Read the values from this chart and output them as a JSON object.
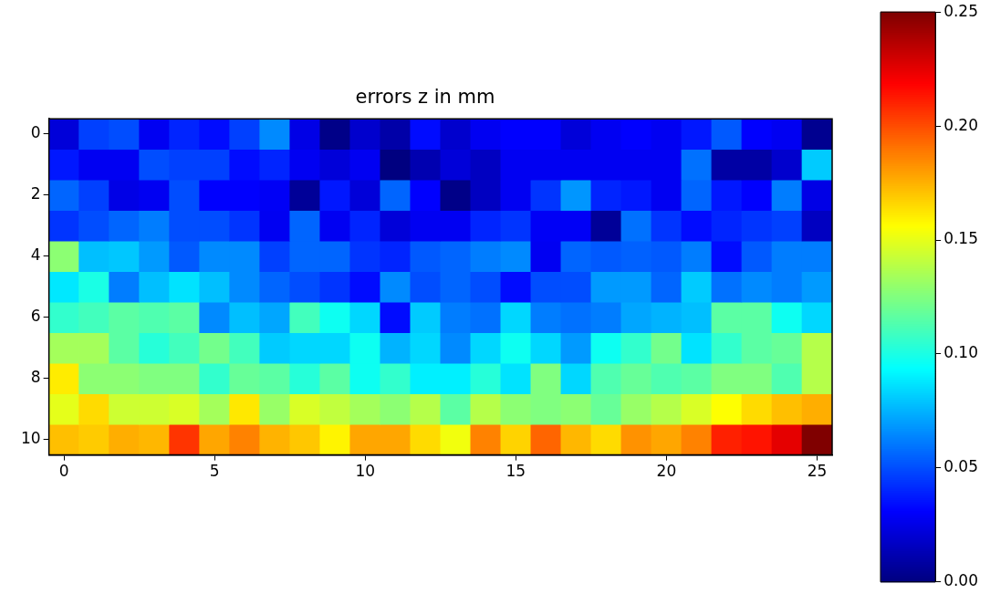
{
  "chart_data": {
    "type": "heatmap",
    "title": "errors z in mm",
    "categories": [
      "0",
      null,
      null,
      null,
      null,
      "5",
      null,
      null,
      null,
      null,
      "10",
      null,
      null,
      null,
      null,
      "15",
      null,
      null,
      null,
      null,
      "20",
      null,
      null,
      null,
      null,
      "25"
    ],
    "y_categories": [
      "0",
      null,
      "2",
      null,
      "4",
      null,
      "6",
      null,
      "8",
      null,
      "10"
    ],
    "cells": [
      [
        0.022,
        0.047,
        0.05,
        0.028,
        0.04,
        0.034,
        0.047,
        0.065,
        0.025,
        0.002,
        0.019,
        0.01,
        0.034,
        0.019,
        0.028,
        0.031,
        0.031,
        0.022,
        0.028,
        0.031,
        0.028,
        0.037,
        0.053,
        0.031,
        0.028,
        0.004
      ],
      [
        0.037,
        0.028,
        0.028,
        0.05,
        0.047,
        0.047,
        0.034,
        0.04,
        0.028,
        0.022,
        0.028,
        0.0,
        0.012,
        0.022,
        0.016,
        0.028,
        0.028,
        0.028,
        0.028,
        0.028,
        0.028,
        0.059,
        0.009,
        0.009,
        0.019,
        0.081
      ],
      [
        0.056,
        0.047,
        0.025,
        0.028,
        0.05,
        0.031,
        0.031,
        0.029,
        0.006,
        0.037,
        0.022,
        0.056,
        0.031,
        0.002,
        0.016,
        0.028,
        0.044,
        0.068,
        0.04,
        0.037,
        0.028,
        0.056,
        0.037,
        0.031,
        0.062,
        0.025
      ],
      [
        0.044,
        0.05,
        0.056,
        0.062,
        0.05,
        0.05,
        0.044,
        0.028,
        0.056,
        0.028,
        0.04,
        0.022,
        0.028,
        0.028,
        0.04,
        0.044,
        0.029,
        0.029,
        0.006,
        0.059,
        0.044,
        0.034,
        0.04,
        0.044,
        0.047,
        0.016
      ],
      [
        0.128,
        0.078,
        0.08,
        0.069,
        0.053,
        0.065,
        0.065,
        0.047,
        0.056,
        0.056,
        0.044,
        0.04,
        0.053,
        0.056,
        0.062,
        0.065,
        0.028,
        0.056,
        0.053,
        0.055,
        0.053,
        0.062,
        0.034,
        0.053,
        0.062,
        0.062
      ],
      [
        0.088,
        0.1,
        0.062,
        0.078,
        0.087,
        0.078,
        0.065,
        0.056,
        0.05,
        0.044,
        0.034,
        0.065,
        0.05,
        0.056,
        0.05,
        0.034,
        0.05,
        0.05,
        0.069,
        0.069,
        0.056,
        0.081,
        0.059,
        0.065,
        0.062,
        0.069
      ],
      [
        0.106,
        0.11,
        0.116,
        0.113,
        0.116,
        0.065,
        0.078,
        0.072,
        0.11,
        0.097,
        0.084,
        0.034,
        0.081,
        0.062,
        0.059,
        0.084,
        0.062,
        0.059,
        0.062,
        0.072,
        0.075,
        0.078,
        0.116,
        0.116,
        0.097,
        0.084
      ],
      [
        0.134,
        0.134,
        0.116,
        0.103,
        0.11,
        0.122,
        0.11,
        0.081,
        0.084,
        0.084,
        0.097,
        0.075,
        0.084,
        0.065,
        0.084,
        0.097,
        0.084,
        0.069,
        0.097,
        0.106,
        0.122,
        0.087,
        0.106,
        0.116,
        0.119,
        0.138
      ],
      [
        0.161,
        0.128,
        0.128,
        0.125,
        0.125,
        0.106,
        0.119,
        0.116,
        0.103,
        0.116,
        0.097,
        0.106,
        0.09,
        0.09,
        0.103,
        0.087,
        0.125,
        0.084,
        0.113,
        0.119,
        0.113,
        0.116,
        0.125,
        0.125,
        0.113,
        0.138
      ],
      [
        0.15,
        0.165,
        0.144,
        0.144,
        0.147,
        0.134,
        0.162,
        0.131,
        0.147,
        0.141,
        0.134,
        0.128,
        0.138,
        0.116,
        0.138,
        0.128,
        0.125,
        0.128,
        0.119,
        0.131,
        0.138,
        0.147,
        0.156,
        0.165,
        0.172,
        0.176
      ],
      [
        0.172,
        0.169,
        0.176,
        0.174,
        0.206,
        0.178,
        0.187,
        0.175,
        0.17,
        0.159,
        0.178,
        0.178,
        0.165,
        0.153,
        0.187,
        0.167,
        0.194,
        0.174,
        0.165,
        0.183,
        0.178,
        0.187,
        0.211,
        0.214,
        0.225,
        0.25
      ]
    ],
    "clim": [
      0,
      0.25
    ],
    "cticks": [
      {
        "value": 0,
        "label": "0.00"
      },
      {
        "value": 0.05,
        "label": "0.05"
      },
      {
        "value": 0.1,
        "label": "0.10"
      },
      {
        "value": 0.15,
        "label": "0.15"
      },
      {
        "value": 0.2,
        "label": "0.20"
      },
      {
        "value": 0.25,
        "label": "0.25"
      }
    ]
  }
}
